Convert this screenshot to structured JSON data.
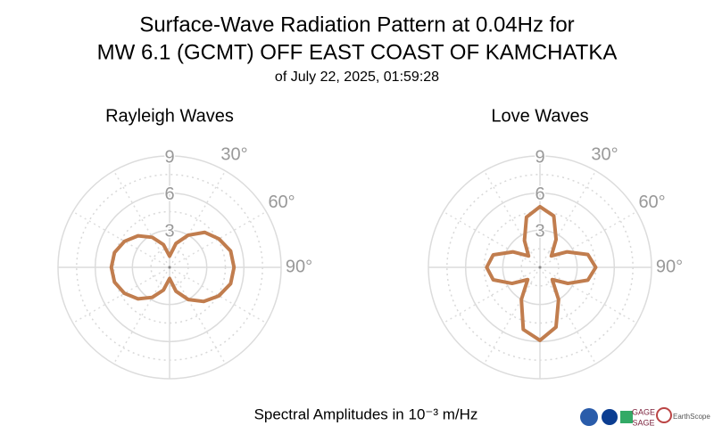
{
  "header": {
    "title_lines": [
      "Surface-Wave Radiation Pattern at 0.04Hz for",
      "MW 6.1 (GCMT) OFF EAST COAST OF KAMCHATKA"
    ],
    "subtitle": "of July 22, 2025, 01:59:28",
    "footer": "Spectral Amplitudes in 10⁻³ m/Hz",
    "logos": [
      "GAGE",
      "SAGE",
      "EarthScope"
    ]
  },
  "chart_data": [
    {
      "type": "polar",
      "title": "Rayleigh Waves",
      "color": "#c17d4e",
      "theta": [
        0,
        15,
        30,
        45,
        60,
        75,
        90,
        105,
        120,
        135,
        150,
        165,
        180,
        195,
        210,
        225,
        240,
        255,
        270,
        285,
        300,
        315,
        330,
        345
      ],
      "values": [
        0.9,
        2.0,
        3.0,
        4.0,
        4.6,
        5.1,
        5.2,
        5.1,
        4.6,
        3.9,
        3.0,
        2.0,
        0.9,
        1.9,
        2.8,
        3.6,
        4.2,
        4.6,
        4.7,
        4.6,
        4.2,
        3.6,
        2.8,
        1.9
      ],
      "rlim": [
        0,
        9
      ],
      "rticks": [
        3,
        6,
        9
      ],
      "minor_rticks": [
        1.5,
        4.5,
        7.5
      ],
      "theta_grid": [
        0,
        30,
        60,
        90,
        120,
        150,
        180,
        210,
        240,
        270,
        300,
        330
      ],
      "thetaticks": [
        {
          "value": 30,
          "label": "30°"
        },
        {
          "value": 60,
          "label": "60°"
        },
        {
          "value": 90,
          "label": "90°"
        }
      ]
    },
    {
      "type": "polar",
      "title": "Love Waves",
      "color": "#c17d4e",
      "theta": [
        0,
        15,
        30,
        45,
        60,
        75,
        90,
        105,
        120,
        135,
        150,
        165,
        180,
        195,
        210,
        225,
        240,
        255,
        270,
        285,
        300,
        315,
        330,
        345
      ],
      "values": [
        4.9,
        4.3,
        2.6,
        1.3,
        2.5,
        4.0,
        4.5,
        4.0,
        2.6,
        1.4,
        3.0,
        5.0,
        5.9,
        5.2,
        3.0,
        1.4,
        2.6,
        3.9,
        4.3,
        3.9,
        2.5,
        1.3,
        2.5,
        4.2
      ],
      "rlim": [
        0,
        9
      ],
      "rticks": [
        3,
        6,
        9
      ],
      "minor_rticks": [
        1.5,
        4.5,
        7.5
      ],
      "theta_grid": [
        0,
        30,
        60,
        90,
        120,
        150,
        180,
        210,
        240,
        270,
        300,
        330
      ],
      "thetaticks": [
        {
          "value": 30,
          "label": "30°"
        },
        {
          "value": 60,
          "label": "60°"
        },
        {
          "value": 90,
          "label": "90°"
        }
      ]
    }
  ]
}
